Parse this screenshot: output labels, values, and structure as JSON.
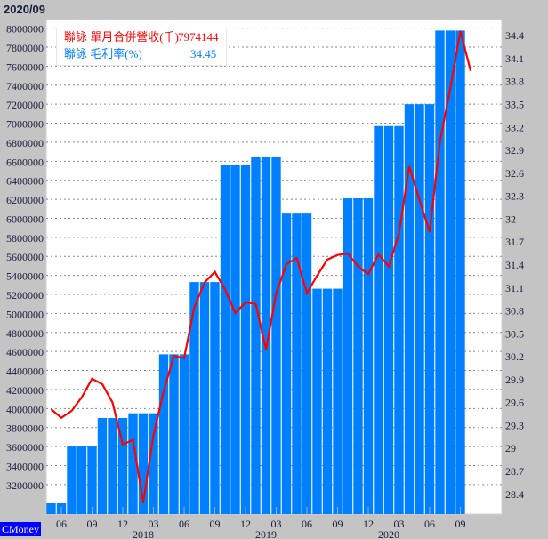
{
  "title": "2020/09",
  "legend": {
    "revenue_label": "聯詠 單月合併營收(千)",
    "revenue_value": "7974144",
    "margin_label": "聯詠 毛利率(%)",
    "margin_value": "34.45"
  },
  "brand": "CMoney",
  "colors": {
    "bars": "#0080ff",
    "line": "#ff0000",
    "legend_revenue": "#ff0000",
    "legend_margin": "#0080ff"
  },
  "chart_data": {
    "type": "bar+line",
    "x": [
      "2017-05",
      "2017-06",
      "2017-07",
      "2017-08",
      "2017-09",
      "2017-10",
      "2017-11",
      "2017-12",
      "2018-01",
      "2018-02",
      "2018-03",
      "2018-04",
      "2018-05",
      "2018-06",
      "2018-07",
      "2018-08",
      "2018-09",
      "2018-10",
      "2018-11",
      "2018-12",
      "2019-01",
      "2019-02",
      "2019-03",
      "2019-04",
      "2019-05",
      "2019-06",
      "2019-07",
      "2019-08",
      "2019-09",
      "2019-10",
      "2019-11",
      "2019-12",
      "2020-01",
      "2020-02",
      "2020-03",
      "2020-04",
      "2020-05",
      "2020-06",
      "2020-07",
      "2020-08",
      "2020-09",
      "2020-10"
    ],
    "series": [
      {
        "name": "聯詠 單月合併營收(千)",
        "axis": "left",
        "type": "bar",
        "values": [
          3010000,
          3010000,
          3600000,
          3600000,
          3600000,
          3900000,
          3900000,
          3900000,
          3950000,
          3950000,
          3950000,
          4570000,
          4570000,
          4570000,
          5330000,
          5330000,
          5330000,
          6560000,
          6560000,
          6560000,
          6650000,
          6650000,
          6650000,
          6050000,
          6050000,
          6050000,
          5260000,
          5260000,
          5260000,
          6210000,
          6210000,
          6210000,
          6970000,
          6970000,
          6970000,
          7200000,
          7200000,
          7200000,
          7974144,
          7974144,
          7974144,
          null
        ]
      },
      {
        "name": "聯詠 毛利率(%)",
        "axis": "right",
        "type": "line",
        "values": [
          29.5,
          29.39,
          29.48,
          29.66,
          29.9,
          29.83,
          29.59,
          29.04,
          29.1,
          28.28,
          29.16,
          29.74,
          30.2,
          30.17,
          30.84,
          31.16,
          31.3,
          31.07,
          30.76,
          30.9,
          30.88,
          30.28,
          31.02,
          31.4,
          31.48,
          31.02,
          31.25,
          31.46,
          31.52,
          31.54,
          31.37,
          31.27,
          31.53,
          31.37,
          31.8,
          32.68,
          32.24,
          31.82,
          33.0,
          33.69,
          34.45,
          33.93
        ]
      }
    ],
    "left_axis": {
      "ylim": [
        2890000,
        8090000
      ],
      "ticks": [
        "8000000",
        "7800000",
        "7600000",
        "7400000",
        "7200000",
        "7000000",
        "6800000",
        "6600000",
        "6400000",
        "6200000",
        "6000000",
        "5800000",
        "5600000",
        "5400000",
        "5200000",
        "5000000",
        "4800000",
        "4600000",
        "4400000",
        "4200000",
        "4000000",
        "3800000",
        "3600000",
        "3400000",
        "3200000"
      ]
    },
    "right_axis": {
      "ylim": [
        28.13,
        34.6
      ],
      "ticks": [
        "34.4",
        "34.1",
        "33.8",
        "33.5",
        "33.2",
        "32.9",
        "32.6",
        "32.3",
        "32",
        "31.7",
        "31.4",
        "31.1",
        "30.8",
        "30.5",
        "30.2",
        "29.9",
        "29.6",
        "29.3",
        "29",
        "28.7",
        "28.4"
      ]
    },
    "x_ticks": [
      {
        "index": 1,
        "label": "06"
      },
      {
        "index": 4,
        "label": "09"
      },
      {
        "index": 7,
        "label": "12"
      },
      {
        "index": 10,
        "label": "03"
      },
      {
        "index": 13,
        "label": "06"
      },
      {
        "index": 16,
        "label": "09"
      },
      {
        "index": 19,
        "label": "12"
      },
      {
        "index": 22,
        "label": "03"
      },
      {
        "index": 25,
        "label": "06"
      },
      {
        "index": 28,
        "label": "09"
      },
      {
        "index": 31,
        "label": "12"
      },
      {
        "index": 34,
        "label": "03"
      },
      {
        "index": 37,
        "label": "06"
      },
      {
        "index": 40,
        "label": "09"
      }
    ],
    "year_labels": [
      {
        "index": 9,
        "label": "2018"
      },
      {
        "index": 21,
        "label": "2019"
      },
      {
        "index": 33,
        "label": "2020"
      }
    ],
    "grid": true,
    "legend_position": "top-left"
  }
}
